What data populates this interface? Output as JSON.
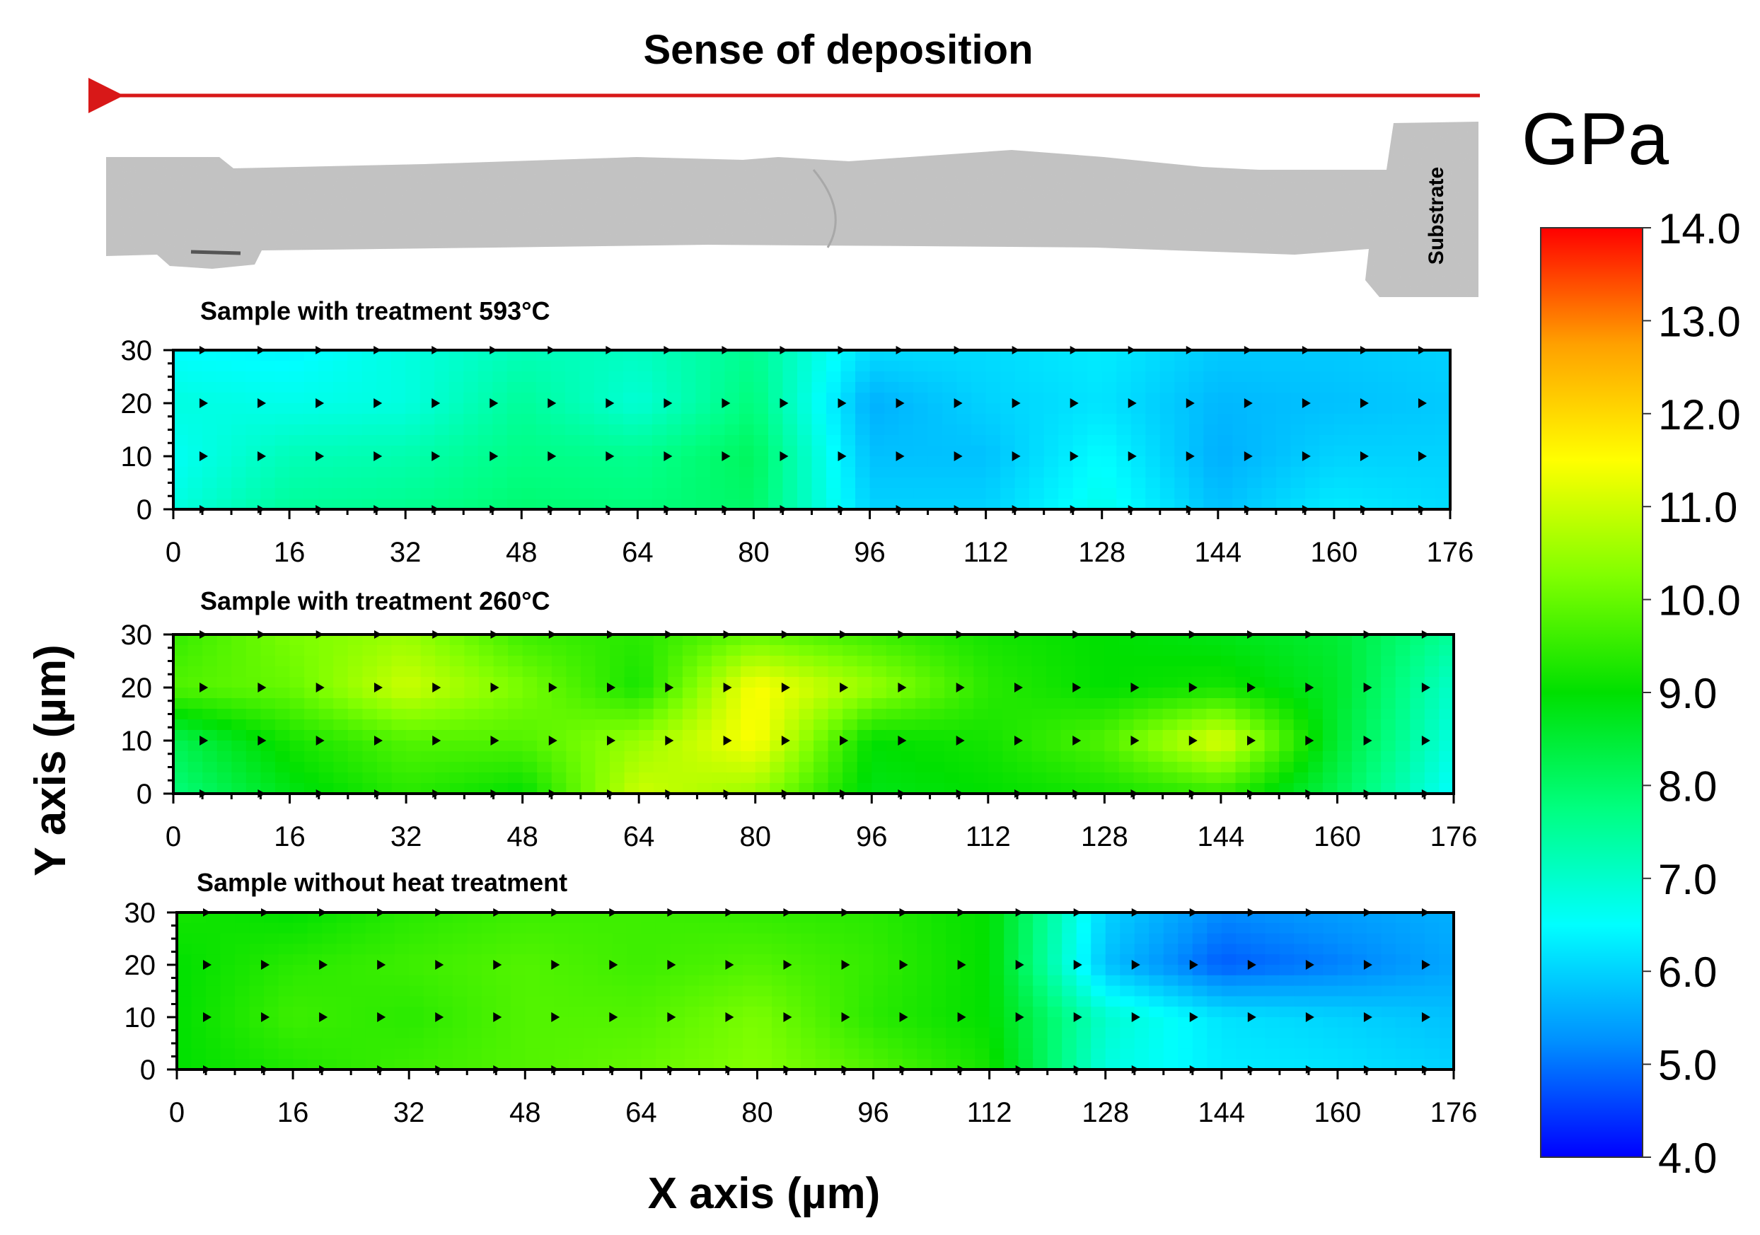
{
  "deposition_title": "Sense of deposition",
  "substrate_label": "Substrate",
  "colorbar": {
    "unit": "GPa",
    "min": 4.0,
    "max": 14.0,
    "ticks": [
      "14.0",
      "13.0",
      "12.0",
      "11.0",
      "10.0",
      "9.0",
      "8.0",
      "7.0",
      "6.0",
      "5.0",
      "4.0"
    ],
    "colors": [
      "#0000ff",
      "#0090ff",
      "#00ffff",
      "#00ff80",
      "#00e000",
      "#80ff00",
      "#ffff00",
      "#ffa000",
      "#ff0000"
    ]
  },
  "xlabel": "X axis (µm)",
  "ylabel": "Y axis (µm)",
  "chart_data": [
    {
      "type": "heatmap",
      "title": "Sample with treatment 593°C",
      "x_ticks": [
        "0",
        "16",
        "32",
        "48",
        "64",
        "80",
        "96",
        "112",
        "128",
        "144",
        "160",
        "176"
      ],
      "y_ticks": [
        "30",
        "20",
        "10",
        "0"
      ],
      "xlim": [
        0,
        176
      ],
      "ylim": [
        0,
        30
      ],
      "x": [
        0,
        16,
        32,
        48,
        64,
        80,
        96,
        112,
        128,
        144,
        160,
        176
      ],
      "y": [
        0,
        10,
        20,
        30
      ],
      "values": [
        [
          6.8,
          7.5,
          7.6,
          7.9,
          7.8,
          8.0,
          6.0,
          6.0,
          6.7,
          5.8,
          6.3,
          6.1
        ],
        [
          6.6,
          7.2,
          7.3,
          7.7,
          7.6,
          8.1,
          5.8,
          5.8,
          6.5,
          5.6,
          6.0,
          6.0
        ],
        [
          6.8,
          6.7,
          6.8,
          7.5,
          6.9,
          7.8,
          5.6,
          6.0,
          6.2,
          5.7,
          5.8,
          5.9
        ],
        [
          6.5,
          6.4,
          6.8,
          7.2,
          7.1,
          7.6,
          6.1,
          6.1,
          6.3,
          5.9,
          5.9,
          6.0
        ]
      ]
    },
    {
      "type": "heatmap",
      "title": "Sample with treatment 260°C",
      "x_ticks": [
        "0",
        "16",
        "32",
        "48",
        "64",
        "80",
        "96",
        "112",
        "128",
        "144",
        "160",
        "176"
      ],
      "y_ticks": [
        "30",
        "20",
        "10",
        "0"
      ],
      "xlim": [
        0,
        176
      ],
      "ylim": [
        0,
        30
      ],
      "x": [
        0,
        16,
        32,
        48,
        64,
        80,
        96,
        112,
        128,
        144,
        160,
        176
      ],
      "y": [
        0,
        10,
        20,
        30
      ],
      "values": [
        [
          7.8,
          8.8,
          9.4,
          9.0,
          11.0,
          10.5,
          8.8,
          9.0,
          9.2,
          9.5,
          8.2,
          6.5
        ],
        [
          8.2,
          9.2,
          9.8,
          9.8,
          10.5,
          11.5,
          9.0,
          9.2,
          9.8,
          11.2,
          8.5,
          6.8
        ],
        [
          9.8,
          10.0,
          11.0,
          10.2,
          9.2,
          11.5,
          10.5,
          9.4,
          9.0,
          9.2,
          8.6,
          7.0
        ],
        [
          9.5,
          10.2,
          10.5,
          9.6,
          9.4,
          10.0,
          9.6,
          9.2,
          9.0,
          8.8,
          8.5,
          7.5
        ]
      ]
    },
    {
      "type": "heatmap",
      "title": "Sample without heat treatment",
      "x_ticks": [
        "0",
        "16",
        "32",
        "48",
        "64",
        "80",
        "96",
        "112",
        "128",
        "144",
        "160",
        "176"
      ],
      "y_ticks": [
        "30",
        "20",
        "10",
        "0"
      ],
      "xlim": [
        0,
        176
      ],
      "ylim": [
        0,
        30
      ],
      "x": [
        0,
        16,
        32,
        48,
        64,
        80,
        96,
        112,
        128,
        144,
        160,
        176
      ],
      "y": [
        0,
        10,
        20,
        30
      ],
      "values": [
        [
          9.0,
          9.3,
          9.6,
          9.8,
          10.0,
          10.3,
          9.8,
          9.2,
          6.8,
          6.3,
          6.2,
          6.0
        ],
        [
          9.0,
          9.6,
          9.4,
          9.8,
          9.8,
          10.2,
          9.4,
          9.0,
          7.0,
          6.2,
          6.0,
          5.8
        ],
        [
          9.0,
          9.4,
          9.6,
          9.8,
          9.6,
          9.8,
          9.5,
          9.0,
          5.8,
          4.8,
          5.1,
          5.5
        ],
        [
          9.2,
          9.0,
          9.4,
          9.6,
          9.6,
          9.5,
          9.4,
          9.0,
          6.0,
          5.2,
          5.4,
          5.6
        ]
      ]
    }
  ]
}
